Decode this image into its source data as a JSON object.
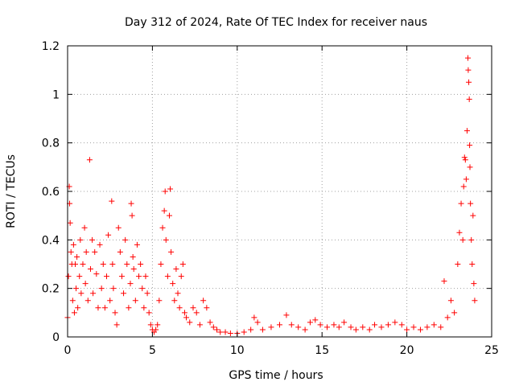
{
  "chart_data": {
    "type": "scatter",
    "title": "Day 312 of 2024, Rate Of TEC Index for receiver naus",
    "xlabel": "GPS time / hours",
    "ylabel": "ROTI / TECUs",
    "xlim": [
      0,
      25
    ],
    "ylim": [
      0,
      1.2
    ],
    "x_ticks": [
      "0",
      "5",
      "10",
      "15",
      "20",
      "25"
    ],
    "y_ticks": [
      "0",
      "0.2",
      "0.4",
      "0.6",
      "0.8",
      "1",
      "1.2"
    ],
    "grid": true,
    "marker": "+",
    "series": [
      {
        "color": "#ff0000",
        "points": [
          [
            0.0,
            0.08
          ],
          [
            0.05,
            0.25
          ],
          [
            0.1,
            0.62
          ],
          [
            0.12,
            0.55
          ],
          [
            0.15,
            0.47
          ],
          [
            0.2,
            0.35
          ],
          [
            0.25,
            0.3
          ],
          [
            0.3,
            0.15
          ],
          [
            0.35,
            0.38
          ],
          [
            0.4,
            0.1
          ],
          [
            0.45,
            0.3
          ],
          [
            0.5,
            0.2
          ],
          [
            0.55,
            0.33
          ],
          [
            0.6,
            0.12
          ],
          [
            0.7,
            0.25
          ],
          [
            0.75,
            0.4
          ],
          [
            0.8,
            0.18
          ],
          [
            0.9,
            0.3
          ],
          [
            1.0,
            0.45
          ],
          [
            1.05,
            0.22
          ],
          [
            1.1,
            0.35
          ],
          [
            1.2,
            0.15
          ],
          [
            1.3,
            0.73
          ],
          [
            1.35,
            0.28
          ],
          [
            1.45,
            0.4
          ],
          [
            1.5,
            0.18
          ],
          [
            1.6,
            0.35
          ],
          [
            1.7,
            0.26
          ],
          [
            1.8,
            0.12
          ],
          [
            1.9,
            0.38
          ],
          [
            2.0,
            0.2
          ],
          [
            2.1,
            0.3
          ],
          [
            2.2,
            0.12
          ],
          [
            2.3,
            0.25
          ],
          [
            2.4,
            0.42
          ],
          [
            2.5,
            0.15
          ],
          [
            2.6,
            0.56
          ],
          [
            2.65,
            0.3
          ],
          [
            2.7,
            0.2
          ],
          [
            2.8,
            0.1
          ],
          [
            2.9,
            0.05
          ],
          [
            3.0,
            0.45
          ],
          [
            3.1,
            0.35
          ],
          [
            3.2,
            0.25
          ],
          [
            3.3,
            0.18
          ],
          [
            3.4,
            0.4
          ],
          [
            3.5,
            0.3
          ],
          [
            3.6,
            0.12
          ],
          [
            3.7,
            0.22
          ],
          [
            3.75,
            0.55
          ],
          [
            3.8,
            0.5
          ],
          [
            3.85,
            0.33
          ],
          [
            3.9,
            0.28
          ],
          [
            4.0,
            0.15
          ],
          [
            4.1,
            0.38
          ],
          [
            4.2,
            0.25
          ],
          [
            4.3,
            0.3
          ],
          [
            4.4,
            0.2
          ],
          [
            4.5,
            0.12
          ],
          [
            4.6,
            0.25
          ],
          [
            4.7,
            0.18
          ],
          [
            4.8,
            0.1
          ],
          [
            4.9,
            0.05
          ],
          [
            5.0,
            0.03
          ],
          [
            5.1,
            0.02
          ],
          [
            5.2,
            0.03
          ],
          [
            5.3,
            0.05
          ],
          [
            5.4,
            0.15
          ],
          [
            5.5,
            0.3
          ],
          [
            5.6,
            0.45
          ],
          [
            5.7,
            0.52
          ],
          [
            5.75,
            0.6
          ],
          [
            5.8,
            0.4
          ],
          [
            5.9,
            0.25
          ],
          [
            6.0,
            0.5
          ],
          [
            6.05,
            0.61
          ],
          [
            6.1,
            0.35
          ],
          [
            6.2,
            0.22
          ],
          [
            6.3,
            0.15
          ],
          [
            6.4,
            0.28
          ],
          [
            6.5,
            0.18
          ],
          [
            6.6,
            0.12
          ],
          [
            6.7,
            0.25
          ],
          [
            6.8,
            0.3
          ],
          [
            6.9,
            0.1
          ],
          [
            7.0,
            0.08
          ],
          [
            7.2,
            0.06
          ],
          [
            7.4,
            0.12
          ],
          [
            7.6,
            0.1
          ],
          [
            7.8,
            0.05
          ],
          [
            8.0,
            0.15
          ],
          [
            8.2,
            0.12
          ],
          [
            8.4,
            0.06
          ],
          [
            8.6,
            0.04
          ],
          [
            8.8,
            0.03
          ],
          [
            9.0,
            0.02
          ],
          [
            9.3,
            0.02
          ],
          [
            9.6,
            0.015
          ],
          [
            10.0,
            0.015
          ],
          [
            10.4,
            0.02
          ],
          [
            10.8,
            0.03
          ],
          [
            11.0,
            0.08
          ],
          [
            11.2,
            0.06
          ],
          [
            11.5,
            0.03
          ],
          [
            12.0,
            0.04
          ],
          [
            12.5,
            0.05
          ],
          [
            12.9,
            0.09
          ],
          [
            13.2,
            0.05
          ],
          [
            13.6,
            0.04
          ],
          [
            14.0,
            0.03
          ],
          [
            14.3,
            0.06
          ],
          [
            14.6,
            0.07
          ],
          [
            14.9,
            0.05
          ],
          [
            15.3,
            0.04
          ],
          [
            15.7,
            0.05
          ],
          [
            16.0,
            0.04
          ],
          [
            16.3,
            0.06
          ],
          [
            16.7,
            0.04
          ],
          [
            17.0,
            0.03
          ],
          [
            17.4,
            0.04
          ],
          [
            17.8,
            0.03
          ],
          [
            18.1,
            0.05
          ],
          [
            18.5,
            0.04
          ],
          [
            18.9,
            0.05
          ],
          [
            19.3,
            0.06
          ],
          [
            19.7,
            0.05
          ],
          [
            20.0,
            0.03
          ],
          [
            20.4,
            0.04
          ],
          [
            20.8,
            0.03
          ],
          [
            21.2,
            0.04
          ],
          [
            21.6,
            0.05
          ],
          [
            22.0,
            0.04
          ],
          [
            22.2,
            0.23
          ],
          [
            22.4,
            0.08
          ],
          [
            22.6,
            0.15
          ],
          [
            22.8,
            0.1
          ],
          [
            23.0,
            0.3
          ],
          [
            23.1,
            0.43
          ],
          [
            23.2,
            0.55
          ],
          [
            23.3,
            0.4
          ],
          [
            23.35,
            0.62
          ],
          [
            23.4,
            0.74
          ],
          [
            23.45,
            0.73
          ],
          [
            23.5,
            0.65
          ],
          [
            23.55,
            0.85
          ],
          [
            23.6,
            1.15
          ],
          [
            23.62,
            1.1
          ],
          [
            23.65,
            1.05
          ],
          [
            23.68,
            0.98
          ],
          [
            23.7,
            0.79
          ],
          [
            23.72,
            0.7
          ],
          [
            23.75,
            0.55
          ],
          [
            23.8,
            0.4
          ],
          [
            23.85,
            0.3
          ],
          [
            23.9,
            0.5
          ],
          [
            23.95,
            0.22
          ],
          [
            24.0,
            0.15
          ]
        ]
      }
    ]
  }
}
